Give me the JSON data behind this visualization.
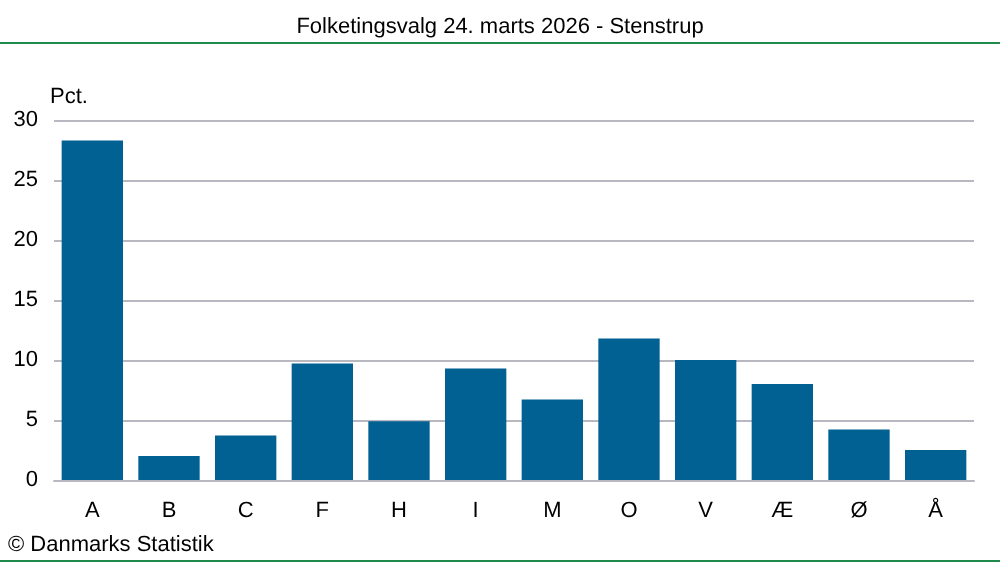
{
  "chart_data": {
    "type": "bar",
    "title": "Folketingsvalg 24. marts 2026 - Stenstrup",
    "ylabel": "Pct.",
    "categories": [
      "A",
      "B",
      "C",
      "F",
      "H",
      "I",
      "M",
      "O",
      "V",
      "Æ",
      "Ø",
      "Å"
    ],
    "values": [
      28.3,
      2.0,
      3.7,
      9.7,
      4.9,
      9.3,
      6.7,
      11.8,
      10.0,
      8.0,
      4.2,
      2.5
    ],
    "color": "#006192",
    "ylim": [
      0,
      30
    ],
    "yticks": [
      0,
      5,
      10,
      15,
      20,
      25,
      30
    ],
    "grid": "y",
    "annotations": [
      "© Danmarks Statistik"
    ]
  }
}
